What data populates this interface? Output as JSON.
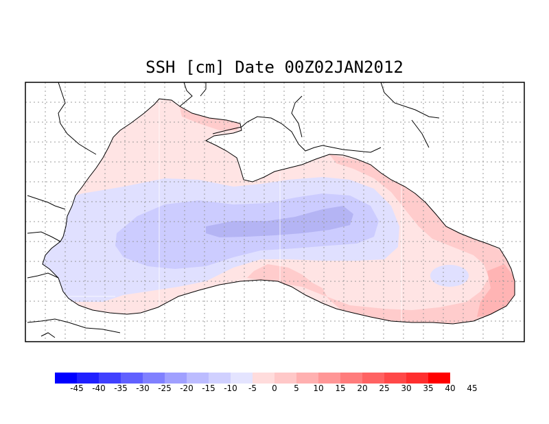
{
  "title": "SSH [cm] Date 00Z02JAN2012",
  "colorbar": {
    "colors": [
      "#0000ff",
      "#2020ff",
      "#4040ff",
      "#6060ff",
      "#8080ff",
      "#a0a0ff",
      "#bcbcff",
      "#d0d0ff",
      "#e4e4ff",
      "#ffdcdc",
      "#ffc8c8",
      "#ffb0b0",
      "#ff9696",
      "#ff7c7c",
      "#ff6262",
      "#ff4848",
      "#ff2e2e",
      "#ff0000"
    ],
    "labels": [
      "-45",
      "-40",
      "-35",
      "-30",
      "-25",
      "-20",
      "-15",
      "-10",
      "-5",
      "0",
      "5",
      "10",
      "15",
      "20",
      "25",
      "30",
      "35",
      "40",
      "45"
    ]
  },
  "colors": {
    "land": "#ffffff",
    "coast": "#000000",
    "grid": "#999999",
    "pos_0_5": "#ffe4e4",
    "pos_5_10": "#ffcccc",
    "pos_10_15": "#ffb4b4",
    "neg_0_5": "#e0e0ff",
    "neg_5_10": "#ccccff",
    "neg_10_15": "#b4b4f4"
  }
}
